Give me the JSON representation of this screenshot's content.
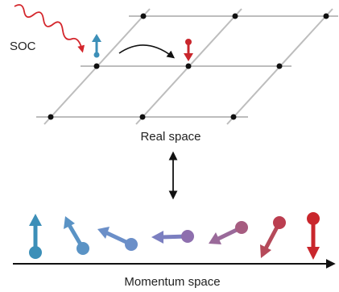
{
  "labels": {
    "soc": "SOC",
    "real_space": "Real space",
    "momentum_space": "Momentum space"
  }
}
